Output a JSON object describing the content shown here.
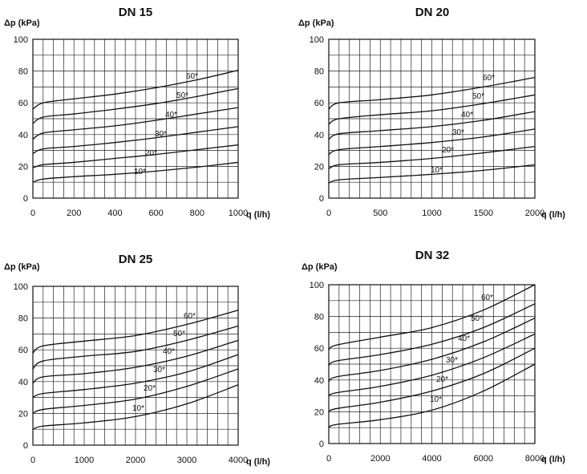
{
  "chart_data": [
    {
      "type": "line",
      "title": "DN 15",
      "ylabel": "Δp (kPa)",
      "xlabel": "q (l/h)",
      "xlim": [
        0,
        1000
      ],
      "ylim": [
        0,
        100
      ],
      "xticks": [
        0,
        200,
        400,
        600,
        800,
        1000
      ],
      "yticks": [
        0,
        20,
        40,
        60,
        80,
        100
      ],
      "grid": true,
      "series": [
        {
          "name": "10*",
          "x": [
            0,
            50,
            200,
            400,
            600,
            800,
            1000
          ],
          "y": [
            10,
            12,
            13.5,
            15,
            17,
            19.5,
            22.5
          ]
        },
        {
          "name": "20*",
          "x": [
            0,
            50,
            200,
            400,
            600,
            800,
            1000
          ],
          "y": [
            19,
            21,
            22.5,
            25,
            27.5,
            30.5,
            33.5
          ]
        },
        {
          "name": "30*",
          "x": [
            0,
            50,
            200,
            400,
            600,
            800,
            1000
          ],
          "y": [
            28,
            31,
            32.5,
            35,
            38,
            41.5,
            45
          ]
        },
        {
          "name": "40*",
          "x": [
            0,
            50,
            200,
            400,
            600,
            800,
            1000
          ],
          "y": [
            37,
            41,
            43,
            45.5,
            49,
            53,
            57
          ]
        },
        {
          "name": "50*",
          "x": [
            0,
            50,
            200,
            400,
            600,
            800,
            1000
          ],
          "y": [
            47,
            51,
            53,
            56,
            59.5,
            64,
            69
          ]
        },
        {
          "name": "60*",
          "x": [
            0,
            50,
            200,
            400,
            600,
            800,
            1000
          ],
          "y": [
            56,
            60,
            62.5,
            65.5,
            69.5,
            74.5,
            80.5
          ]
        }
      ]
    },
    {
      "type": "line",
      "title": "DN 20",
      "ylabel": "Δp (kPa)",
      "xlabel": "q (l/h)",
      "xlim": [
        0,
        2000
      ],
      "ylim": [
        0,
        100
      ],
      "xticks": [
        0,
        500,
        1000,
        1500,
        2000
      ],
      "yticks": [
        0,
        20,
        40,
        60,
        80,
        100
      ],
      "grid": true,
      "series": [
        {
          "name": "10*",
          "x": [
            0,
            100,
            500,
            1000,
            1500,
            2000
          ],
          "y": [
            9.5,
            11.5,
            13,
            15,
            17.5,
            21
          ]
        },
        {
          "name": "20*",
          "x": [
            0,
            100,
            500,
            1000,
            1500,
            2000
          ],
          "y": [
            18.5,
            21,
            22.5,
            25,
            28.5,
            32.5
          ]
        },
        {
          "name": "30*",
          "x": [
            0,
            100,
            500,
            1000,
            1500,
            2000
          ],
          "y": [
            27.5,
            30.5,
            32.5,
            35,
            38.5,
            43.5
          ]
        },
        {
          "name": "40*",
          "x": [
            0,
            100,
            500,
            1000,
            1500,
            2000
          ],
          "y": [
            37,
            40.5,
            42.5,
            45,
            49,
            54.5
          ]
        },
        {
          "name": "50*",
          "x": [
            0,
            100,
            500,
            1000,
            1500,
            2000
          ],
          "y": [
            46.5,
            50,
            52.5,
            55,
            59.5,
            65
          ]
        },
        {
          "name": "60*",
          "x": [
            0,
            100,
            500,
            1000,
            1500,
            2000
          ],
          "y": [
            56,
            60,
            62,
            65,
            70,
            76
          ]
        }
      ]
    },
    {
      "type": "line",
      "title": "DN 25",
      "ylabel": "Δp (kPa)",
      "xlabel": "q (l/h)",
      "xlim": [
        0,
        4000
      ],
      "ylim": [
        0,
        100
      ],
      "xticks": [
        0,
        1000,
        2000,
        3000,
        4000
      ],
      "yticks": [
        0,
        20,
        40,
        60,
        80,
        100
      ],
      "grid": true,
      "series": [
        {
          "name": "10*",
          "x": [
            0,
            200,
            1000,
            2000,
            3000,
            4000
          ],
          "y": [
            10,
            12,
            14,
            18,
            26,
            38
          ]
        },
        {
          "name": "20*",
          "x": [
            0,
            200,
            1000,
            2000,
            3000,
            4000
          ],
          "y": [
            20,
            22.5,
            25,
            29,
            37,
            48
          ]
        },
        {
          "name": "30*",
          "x": [
            0,
            200,
            1000,
            2000,
            3000,
            4000
          ],
          "y": [
            30,
            32.5,
            35,
            39,
            46,
            57
          ]
        },
        {
          "name": "40*",
          "x": [
            0,
            200,
            1000,
            2000,
            3000,
            4000
          ],
          "y": [
            39,
            43,
            45,
            49,
            56,
            66
          ]
        },
        {
          "name": "50*",
          "x": [
            0,
            200,
            1000,
            2000,
            3000,
            4000
          ],
          "y": [
            48,
            53,
            56,
            59,
            66,
            75
          ]
        },
        {
          "name": "60*",
          "x": [
            0,
            200,
            1000,
            2000,
            3000,
            4000
          ],
          "y": [
            58,
            62.5,
            65.5,
            69,
            76,
            85
          ]
        }
      ]
    },
    {
      "type": "line",
      "title": "DN 32",
      "ylabel": "Δp (kPa)",
      "xlabel": "q (l/h)",
      "xlim": [
        0,
        8000
      ],
      "ylim": [
        0,
        100
      ],
      "xticks": [
        0,
        2000,
        4000,
        6000,
        8000
      ],
      "yticks": [
        0,
        20,
        40,
        60,
        80,
        100
      ],
      "grid": true,
      "series": [
        {
          "name": "10*",
          "x": [
            0,
            300,
            2000,
            4000,
            6000,
            8000
          ],
          "y": [
            10,
            12,
            15,
            21,
            33,
            50
          ]
        },
        {
          "name": "20*",
          "x": [
            0,
            300,
            2000,
            4000,
            6000,
            8000
          ],
          "y": [
            20,
            22,
            26,
            33,
            44,
            60
          ]
        },
        {
          "name": "30*",
          "x": [
            0,
            300,
            2000,
            4000,
            6000,
            8000
          ],
          "y": [
            30,
            32,
            36,
            43,
            54,
            69
          ]
        },
        {
          "name": "40*",
          "x": [
            0,
            300,
            2000,
            4000,
            6000,
            8000
          ],
          "y": [
            39,
            42,
            46,
            53,
            64,
            79
          ]
        },
        {
          "name": "50*",
          "x": [
            0,
            300,
            2000,
            4000,
            6000,
            8000
          ],
          "y": [
            49,
            52,
            56,
            62.5,
            73,
            88
          ]
        },
        {
          "name": "60*",
          "x": [
            0,
            300,
            2000,
            4000,
            6000,
            8000
          ],
          "y": [
            59,
            62,
            67,
            73,
            84,
            100
          ]
        }
      ]
    }
  ]
}
